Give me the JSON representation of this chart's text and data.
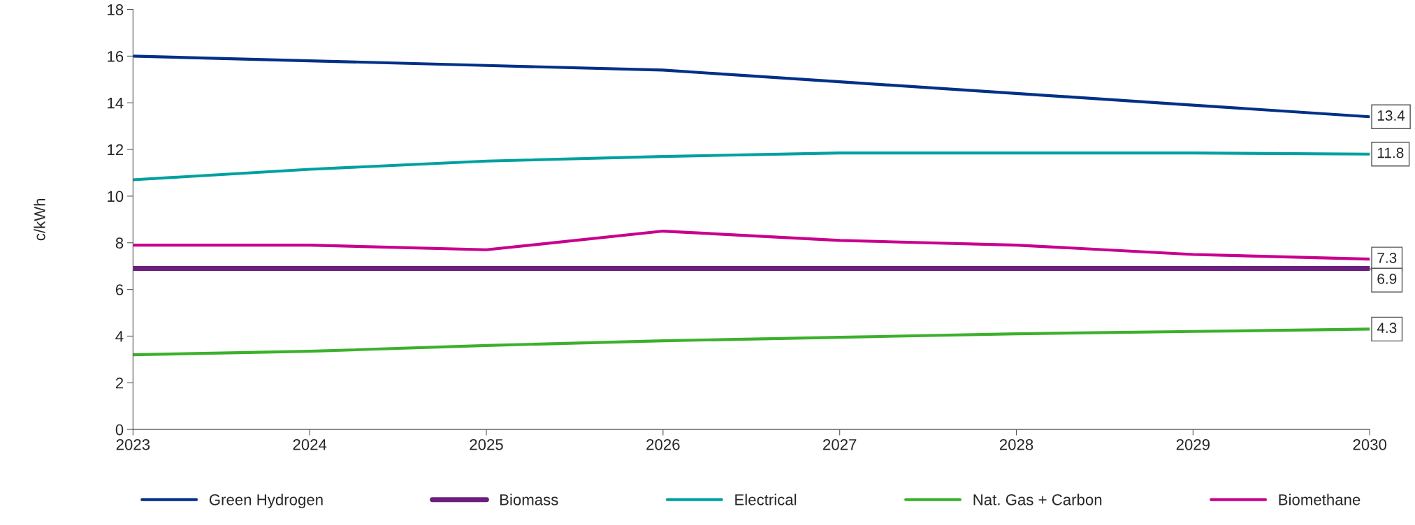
{
  "chart_data": {
    "type": "line",
    "ylabel": "c/kWh",
    "x": [
      2023,
      2024,
      2025,
      2026,
      2027,
      2028,
      2029,
      2030
    ],
    "xlim": [
      2023,
      2030
    ],
    "xticks": [
      2023,
      2024,
      2025,
      2026,
      2027,
      2028,
      2029,
      2030
    ],
    "ylim": [
      0,
      18
    ],
    "yticks": [
      0,
      2,
      4,
      6,
      8,
      10,
      12,
      14,
      16,
      18
    ],
    "grid": false,
    "legend": "bottom",
    "series": [
      {
        "name": "Green Hydrogen",
        "color": "#003087",
        "values": [
          16.0,
          15.8,
          15.6,
          15.4,
          14.9,
          14.4,
          13.9,
          13.4
        ],
        "value_labels": [
          null,
          null,
          null,
          null,
          null,
          null,
          null,
          "13.4"
        ]
      },
      {
        "name": "Biomass",
        "color": "#6b1f7c",
        "values": [
          6.9,
          6.9,
          6.9,
          6.9,
          6.9,
          6.9,
          6.9,
          6.9
        ],
        "value_labels": [
          null,
          null,
          null,
          null,
          null,
          null,
          null,
          "6.9"
        ]
      },
      {
        "name": "Electrical",
        "color": "#00a0a0",
        "values": [
          10.7,
          11.15,
          11.5,
          11.7,
          11.85,
          11.85,
          11.85,
          11.8
        ],
        "value_labels": [
          null,
          null,
          null,
          null,
          null,
          null,
          null,
          "11.8"
        ]
      },
      {
        "name": "Nat. Gas + Carbon",
        "color": "#3cb02c",
        "values": [
          3.2,
          3.35,
          3.6,
          3.8,
          3.95,
          4.1,
          4.2,
          4.3
        ],
        "value_labels": [
          null,
          null,
          null,
          null,
          null,
          null,
          null,
          "4.3"
        ]
      },
      {
        "name": "Biomethane",
        "color": "#c8008c",
        "values": [
          7.9,
          7.9,
          7.7,
          8.5,
          8.1,
          7.9,
          7.5,
          7.3
        ],
        "value_labels": [
          null,
          null,
          null,
          null,
          null,
          null,
          null,
          "7.3"
        ]
      }
    ]
  }
}
